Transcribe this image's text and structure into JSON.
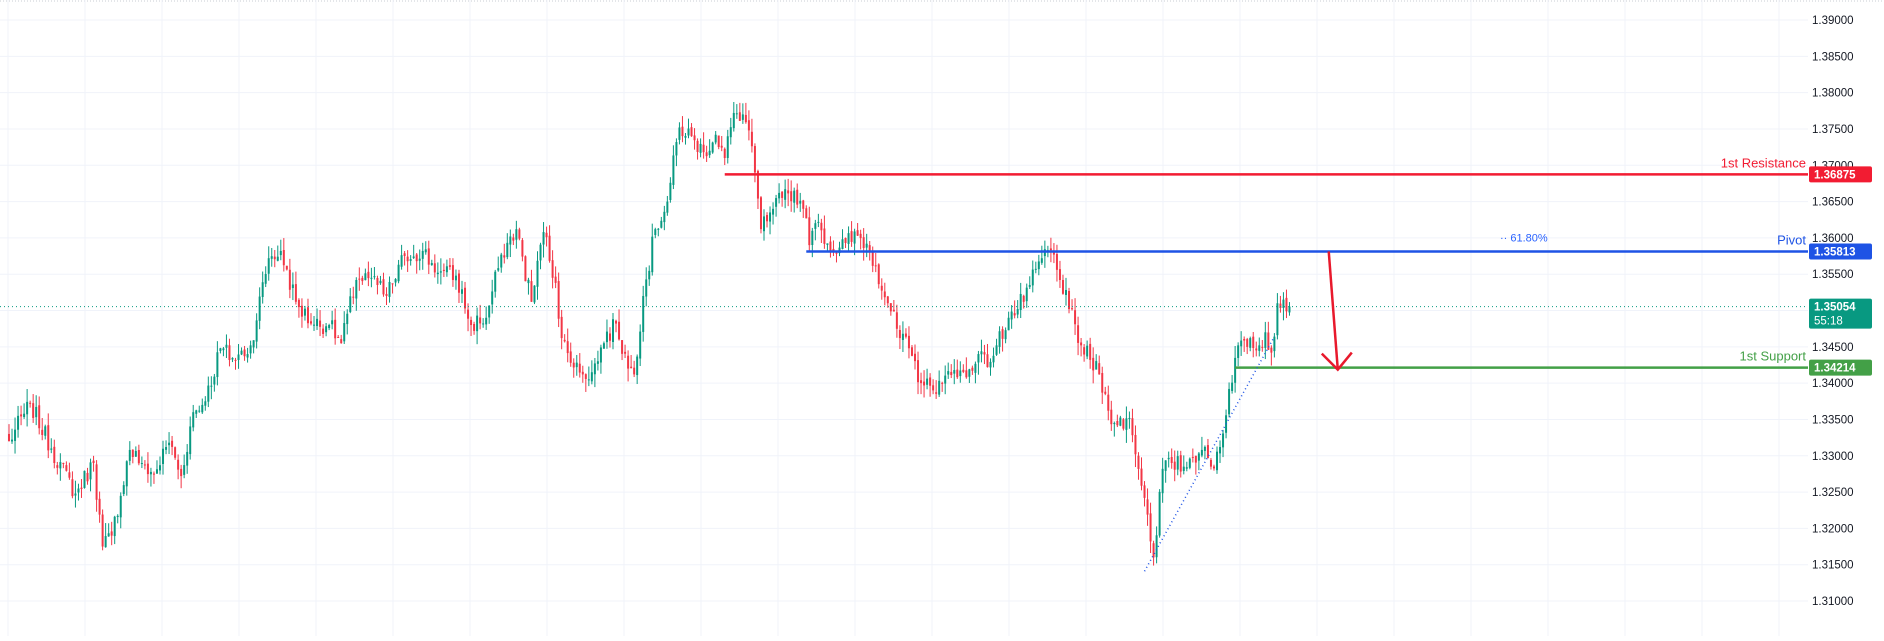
{
  "chart_data": {
    "type": "candlestick",
    "symbol": "",
    "ylim": [
      1.3075,
      1.3925
    ],
    "y_ticks": [
      "1.39000",
      "1.38500",
      "1.38000",
      "1.37500",
      "1.37000",
      "1.36500",
      "1.36000",
      "1.35500",
      "1.35000",
      "1.34500",
      "1.34000",
      "1.33500",
      "1.33000",
      "1.32500",
      "1.32000",
      "1.31500",
      "1.31000"
    ],
    "current_price": {
      "value": 1.35054,
      "label": "1.35054",
      "countdown": "55:18",
      "color": "#089981"
    },
    "levels": [
      {
        "name": "1st Resistance",
        "value": 1.36875,
        "label": "1.36875",
        "color": "#f21c32",
        "start_index": 237
      },
      {
        "name": "Pivot",
        "value": 1.35813,
        "label": "1.35813",
        "color": "#1e53e5",
        "start_index": 264
      },
      {
        "name": "1st Support",
        "value": 1.34214,
        "label": "1.34214",
        "color": "#43a047",
        "start_index": 406
      }
    ],
    "fib_label": "61.80%",
    "forecast_arrow": {
      "from": {
        "index": 437,
        "price": 1.35813
      },
      "to": {
        "index": 440,
        "price": 1.34214
      },
      "color": "#e8192c"
    },
    "trendline": {
      "from": {
        "index": 376,
        "price": 1.3141
      },
      "to": {
        "index": 419,
        "price": 1.3464
      },
      "color": "#1e53e5"
    },
    "colors": {
      "up": "#089981",
      "down": "#f23645",
      "grid": "#f0f3fa",
      "axis_text": "#131722"
    },
    "anchors": [
      [
        0,
        1.332
      ],
      [
        7,
        1.3372
      ],
      [
        14,
        1.331
      ],
      [
        22,
        1.3248
      ],
      [
        28,
        1.329
      ],
      [
        31,
        1.3175
      ],
      [
        34,
        1.319
      ],
      [
        40,
        1.3308
      ],
      [
        44,
        1.329
      ],
      [
        48,
        1.3275
      ],
      [
        53,
        1.3318
      ],
      [
        57,
        1.3272
      ],
      [
        61,
        1.336
      ],
      [
        65,
        1.3375
      ],
      [
        70,
        1.3448
      ],
      [
        75,
        1.3432
      ],
      [
        80,
        1.3452
      ],
      [
        86,
        1.3572
      ],
      [
        90,
        1.3582
      ],
      [
        95,
        1.3512
      ],
      [
        100,
        1.3482
      ],
      [
        106,
        1.348
      ],
      [
        110,
        1.3455
      ],
      [
        115,
        1.3542
      ],
      [
        120,
        1.3545
      ],
      [
        125,
        1.352
      ],
      [
        131,
        1.3575
      ],
      [
        137,
        1.3582
      ],
      [
        142,
        1.3552
      ],
      [
        148,
        1.3548
      ],
      [
        153,
        1.348
      ],
      [
        158,
        1.349
      ],
      [
        163,
        1.3577
      ],
      [
        168,
        1.3612
      ],
      [
        173,
        1.3512
      ],
      [
        177,
        1.3608
      ],
      [
        181,
        1.3538
      ],
      [
        183,
        1.3462
      ],
      [
        186,
        1.3428
      ],
      [
        190,
        1.3412
      ],
      [
        193,
        1.3415
      ],
      [
        197,
        1.3455
      ],
      [
        201,
        1.3482
      ],
      [
        205,
        1.342
      ],
      [
        207,
        1.3412
      ],
      [
        210,
        1.352
      ],
      [
        214,
        1.3612
      ],
      [
        218,
        1.365
      ],
      [
        222,
        1.3752
      ],
      [
        226,
        1.374
      ],
      [
        230,
        1.3718
      ],
      [
        234,
        1.3742
      ],
      [
        237,
        1.371
      ],
      [
        240,
        1.3772
      ],
      [
        243,
        1.377
      ],
      [
        245,
        1.3748
      ],
      [
        247,
        1.369
      ],
      [
        249,
        1.3612
      ],
      [
        252,
        1.3635
      ],
      [
        256,
        1.3655
      ],
      [
        260,
        1.3665
      ],
      [
        263,
        1.364
      ],
      [
        265,
        1.359
      ],
      [
        268,
        1.3622
      ],
      [
        272,
        1.3582
      ],
      [
        277,
        1.3593
      ],
      [
        281,
        1.3603
      ],
      [
        284,
        1.3592
      ],
      [
        287,
        1.3562
      ],
      [
        291,
        1.351
      ],
      [
        295,
        1.3462
      ],
      [
        298,
        1.3448
      ],
      [
        302,
        1.34
      ],
      [
        306,
        1.339
      ],
      [
        309,
        1.34
      ],
      [
        313,
        1.3418
      ],
      [
        317,
        1.3408
      ],
      [
        321,
        1.344
      ],
      [
        324,
        1.3422
      ],
      [
        327,
        1.3452
      ],
      [
        331,
        1.349
      ],
      [
        334,
        1.3502
      ],
      [
        338,
        1.3535
      ],
      [
        342,
        1.3572
      ],
      [
        345,
        1.3583
      ],
      [
        348,
        1.3542
      ],
      [
        351,
        1.3502
      ],
      [
        355,
        1.3452
      ],
      [
        358,
        1.3432
      ],
      [
        361,
        1.3412
      ],
      [
        364,
        1.3362
      ],
      [
        367,
        1.3342
      ],
      [
        371,
        1.3352
      ],
      [
        373,
        1.3302
      ],
      [
        376,
        1.3242
      ],
      [
        379,
        1.316
      ],
      [
        382,
        1.3282
      ],
      [
        385,
        1.329
      ],
      [
        389,
        1.3285
      ],
      [
        392,
        1.3298
      ],
      [
        395,
        1.3308
      ],
      [
        398,
        1.3285
      ],
      [
        401,
        1.3312
      ],
      [
        404,
        1.3392
      ],
      [
        407,
        1.3452
      ],
      [
        411,
        1.3462
      ],
      [
        414,
        1.3452
      ],
      [
        416,
        1.347
      ],
      [
        418,
        1.3442
      ],
      [
        420,
        1.351
      ],
      [
        422,
        1.3515
      ],
      [
        424,
        1.3503
      ]
    ]
  }
}
